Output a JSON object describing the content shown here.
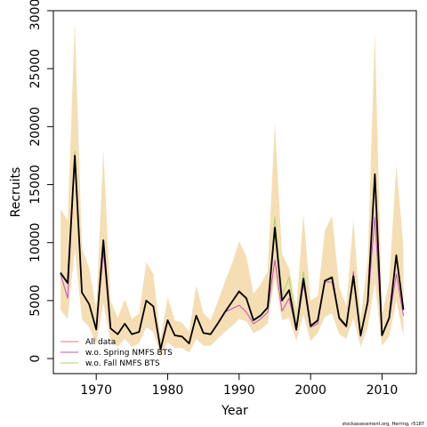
{
  "chart_data": {
    "type": "line",
    "xlabel": "Year",
    "ylabel": "Recruits",
    "xlim": [
      1964,
      2014.8
    ],
    "ylim": [
      -1300,
      30000
    ],
    "xticks": [
      1970,
      1980,
      1990,
      2000,
      2010
    ],
    "yticks": [
      0,
      5000,
      10000,
      15000,
      20000,
      25000,
      30000
    ],
    "x": [
      1965,
      1966,
      1967,
      1968,
      1969,
      1970,
      1971,
      1972,
      1973,
      1974,
      1975,
      1976,
      1977,
      1978,
      1979,
      1980,
      1981,
      1982,
      1983,
      1984,
      1985,
      1986,
      1987,
      1988,
      1989,
      1990,
      1991,
      1992,
      1993,
      1994,
      1995,
      1996,
      1997,
      1998,
      1999,
      2000,
      2001,
      2002,
      2003,
      2004,
      2005,
      2006,
      2007,
      2008,
      2009,
      2010,
      2011,
      2012,
      2013
    ],
    "confidence_band": {
      "lower": [
        4200,
        3400,
        9500,
        3400,
        2700,
        1200,
        4800,
        1500,
        1000,
        1700,
        1000,
        1300,
        2700,
        2300,
        200,
        1400,
        900,
        900,
        500,
        1700,
        1100,
        1100,
        1700,
        2300,
        2800,
        3400,
        3200,
        2200,
        2500,
        3000,
        7000,
        3300,
        3500,
        1500,
        3800,
        1500,
        2200,
        3600,
        3900,
        2100,
        1700,
        3500,
        1000,
        2700,
        6500,
        1100,
        1900,
        5000,
        1900
      ],
      "upper": [
        12900,
        11900,
        29000,
        9500,
        7800,
        4300,
        18000,
        5000,
        3500,
        5100,
        3400,
        3900,
        8300,
        7300,
        1700,
        5300,
        3300,
        3100,
        2300,
        6300,
        3900,
        3300,
        4900,
        6600,
        8200,
        10100,
        8800,
        5600,
        6400,
        7500,
        20300,
        9000,
        7800,
        4300,
        12500,
        5000,
        5400,
        11000,
        12300,
        6200,
        4500,
        12000,
        3500,
        8500,
        28200,
        3800,
        6600,
        16700,
        9700
      ]
    },
    "series": [
      {
        "name": "All data",
        "color": "#e8747c",
        "values": [
          7400,
          6500,
          17500,
          5700,
          4700,
          2500,
          10200,
          2600,
          2100,
          3000,
          2100,
          2300,
          5000,
          4500,
          800,
          3300,
          2000,
          1900,
          1300,
          3700,
          2200,
          2100,
          3000,
          4000,
          4900,
          5700,
          5200,
          3300,
          3700,
          4400,
          11300,
          5000,
          5800,
          2600,
          6800,
          2800,
          3200,
          6700,
          6900,
          3500,
          2800,
          7000,
          2000,
          4800,
          15700,
          2000,
          3500,
          8700,
          4200
        ]
      },
      {
        "name": "w.o. Spring NMFS BTS",
        "color": "#c34fc3",
        "values": [
          7300,
          5200,
          17500,
          5700,
          4700,
          2500,
          9200,
          2600,
          2100,
          3000,
          2100,
          2300,
          5000,
          4500,
          800,
          3300,
          2000,
          1900,
          1300,
          3700,
          2200,
          2100,
          3000,
          4000,
          4300,
          4600,
          4000,
          3000,
          3400,
          4000,
          8500,
          4100,
          5200,
          2400,
          6400,
          2700,
          3000,
          6600,
          6600,
          3400,
          2700,
          7500,
          1900,
          4700,
          12200,
          2000,
          3400,
          7300,
          3700
        ]
      },
      {
        "name": "w.o. Fall NMFS BTS",
        "color": "#a6d96a",
        "values": [
          7500,
          6600,
          17900,
          5700,
          4700,
          2600,
          10300,
          2600,
          2100,
          3000,
          2100,
          2300,
          5000,
          4500,
          800,
          3300,
          2000,
          1900,
          1300,
          3700,
          2200,
          2100,
          3000,
          4000,
          4900,
          5800,
          5300,
          3400,
          3800,
          4500,
          12200,
          5400,
          7000,
          2800,
          7500,
          2900,
          3300,
          6800,
          7100,
          3600,
          2900,
          7000,
          2100,
          5000,
          15900,
          2100,
          3600,
          9000,
          4300
        ]
      },
      {
        "name": "",
        "color": "#000000",
        "values": [
          7400,
          6500,
          17500,
          5700,
          4700,
          2500,
          10200,
          2600,
          2100,
          3000,
          2100,
          2300,
          5000,
          4500,
          800,
          3300,
          2000,
          1900,
          1300,
          3700,
          2200,
          2100,
          3000,
          4000,
          4900,
          5800,
          5200,
          3300,
          3700,
          4400,
          11300,
          5000,
          5900,
          2500,
          6900,
          2800,
          3300,
          6700,
          7000,
          3500,
          2800,
          7100,
          2000,
          4900,
          15900,
          2000,
          3500,
          8900,
          4200
        ]
      }
    ],
    "band_color": "#f5deb3",
    "legend": {
      "placement": "bottom-left",
      "entries": [
        "All data",
        "w.o. Spring NMFS BTS",
        "w.o. Fall NMFS BTS"
      ]
    },
    "credit": "stockassessment.org, Herring, r5187"
  }
}
